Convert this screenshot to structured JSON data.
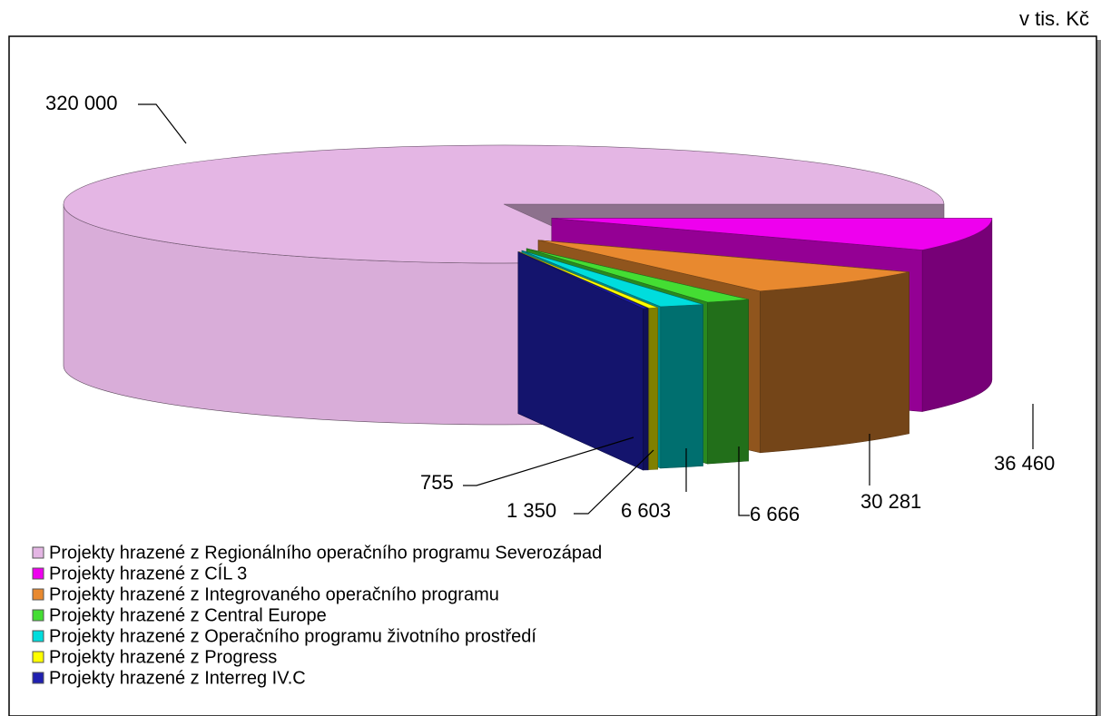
{
  "chart_data": {
    "type": "pie",
    "unit_label": "v tis. Kč",
    "categories": [
      "Projekty hrazené z Regionálního operačního programu Severozápad",
      "Projekty hrazené z CÍL 3",
      "Projekty hrazené z Integrovaného operačního programu",
      "Projekty hrazené z Central Europe",
      "Projekty hrazené z Operačního programu životního prostředí",
      "Projekty hrazené z Progress",
      "Projekty hrazené z Interreg IV.C"
    ],
    "values": [
      320000,
      36460,
      30281,
      6666,
      6603,
      1350,
      755
    ],
    "value_labels": [
      "320 000",
      "36 460",
      "30 281",
      "6 666",
      "6 603",
      "1 350",
      "755"
    ],
    "colors": [
      "#e4b6e4",
      "#ee00ee",
      "#e8892f",
      "#44dd33",
      "#00dddd",
      "#ffff00",
      "#2020b0"
    ],
    "legend": "bottom-left"
  }
}
